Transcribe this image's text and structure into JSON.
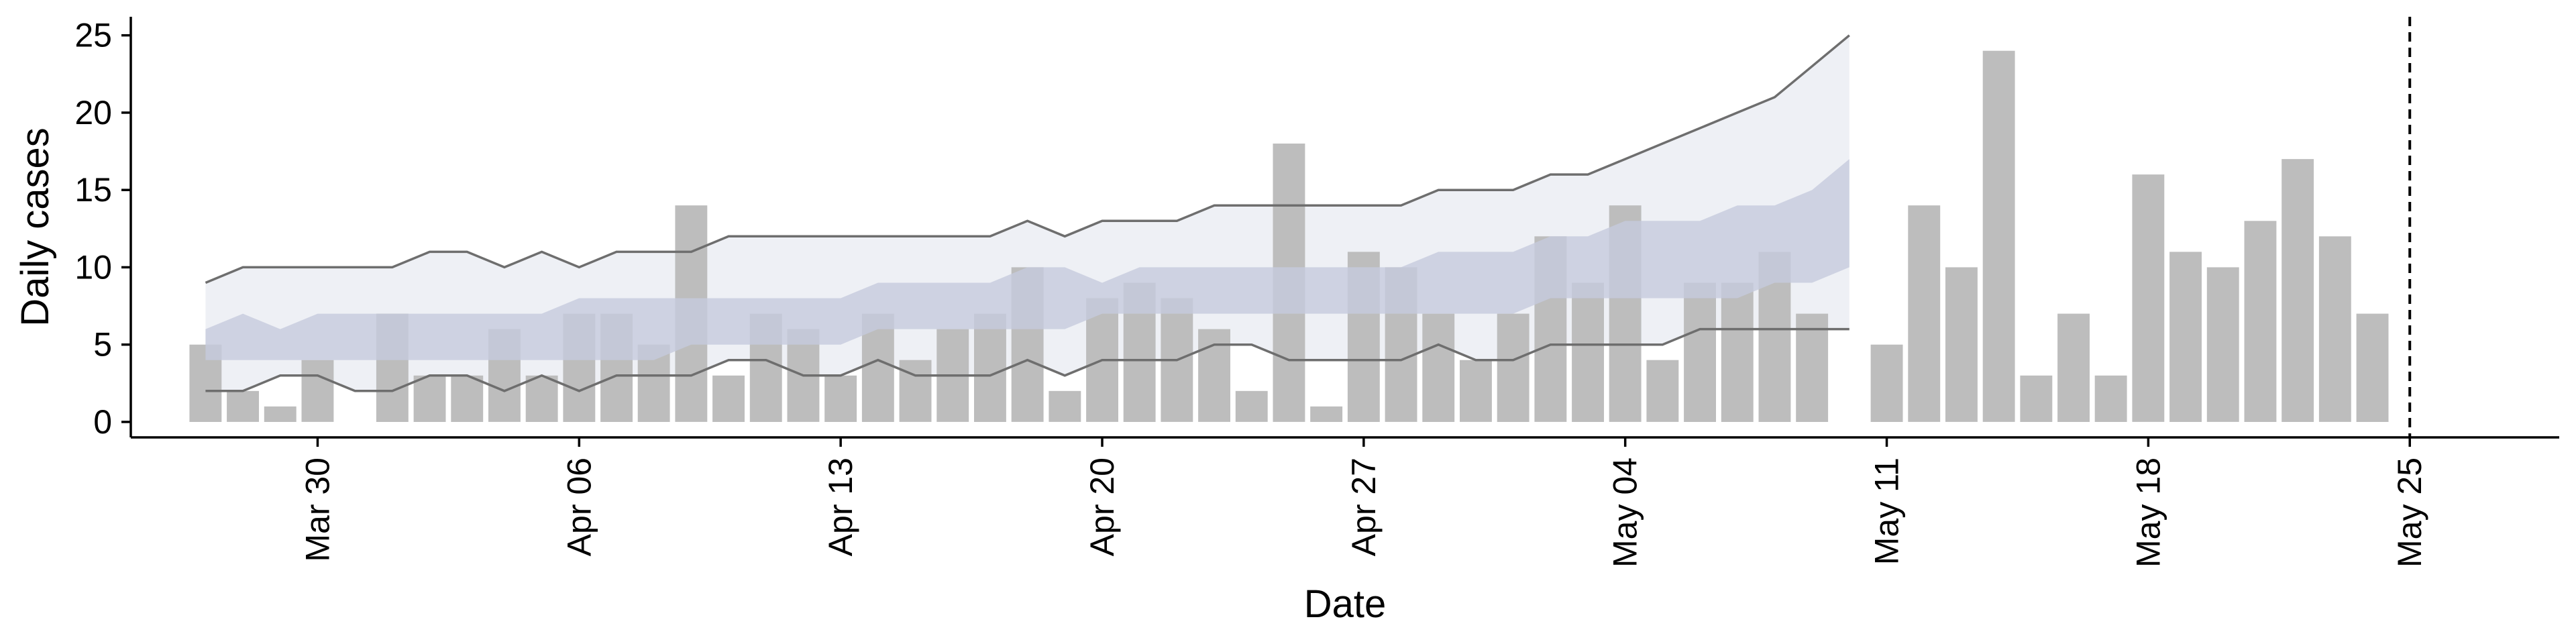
{
  "chart_data": {
    "type": "bar",
    "xlabel": "Date",
    "ylabel": "Daily cases",
    "x_start": "2020-03-27",
    "ylim": [
      -1,
      26.2
    ],
    "xlim": [
      "2020-03-25",
      "2020-05-29"
    ],
    "yticks": [
      0,
      5,
      10,
      15,
      20,
      25
    ],
    "xticks": [
      {
        "date": "2020-03-30",
        "label": "Mar 30"
      },
      {
        "date": "2020-04-06",
        "label": "Apr 06"
      },
      {
        "date": "2020-04-13",
        "label": "Apr 13"
      },
      {
        "date": "2020-04-20",
        "label": "Apr 20"
      },
      {
        "date": "2020-04-27",
        "label": "Apr 27"
      },
      {
        "date": "2020-05-04",
        "label": "May 04"
      },
      {
        "date": "2020-05-11",
        "label": "May 11"
      },
      {
        "date": "2020-05-18",
        "label": "May 18"
      },
      {
        "date": "2020-05-25",
        "label": "May 25"
      }
    ],
    "cases": [
      5,
      2,
      1,
      4,
      null,
      7,
      3,
      3,
      6,
      3,
      7,
      7,
      5,
      14,
      3,
      7,
      6,
      3,
      7,
      4,
      6,
      7,
      10,
      2,
      8,
      9,
      8,
      6,
      2,
      18,
      1,
      11,
      10,
      7,
      4,
      7,
      12,
      9,
      14,
      4,
      9,
      9,
      11,
      7,
      null,
      5,
      14,
      10,
      24,
      3,
      7,
      3,
      16,
      11,
      10,
      13,
      17,
      12,
      7
    ],
    "fit_end_index": 44,
    "upper_outer": [
      9,
      10,
      10,
      10,
      10,
      10,
      11,
      11,
      10,
      11,
      10,
      11,
      11,
      11,
      12,
      12,
      12,
      12,
      12,
      12,
      12,
      12,
      13,
      12,
      13,
      13,
      13,
      14,
      14,
      14,
      14,
      14,
      14,
      15,
      15,
      15,
      16,
      16,
      17,
      18,
      19,
      20,
      21,
      23,
      25
    ],
    "lower_outer": [
      2,
      2,
      3,
      3,
      2,
      2,
      3,
      3,
      2,
      3,
      2,
      3,
      3,
      3,
      4,
      4,
      3,
      3,
      4,
      3,
      3,
      3,
      4,
      3,
      4,
      4,
      4,
      5,
      5,
      4,
      4,
      4,
      4,
      5,
      4,
      4,
      5,
      5,
      5,
      5,
      6,
      6,
      6,
      6,
      6
    ],
    "upper_inner": [
      6,
      7,
      6,
      7,
      7,
      7,
      7,
      7,
      7,
      7,
      8,
      8,
      8,
      8,
      8,
      8,
      8,
      8,
      9,
      9,
      9,
      9,
      10,
      10,
      9,
      10,
      10,
      10,
      10,
      10,
      10,
      10,
      10,
      11,
      11,
      11,
      12,
      12,
      13,
      13,
      13,
      14,
      14,
      15,
      17
    ],
    "lower_inner": [
      4,
      4,
      4,
      4,
      4,
      4,
      4,
      4,
      4,
      4,
      4,
      4,
      4,
      5,
      5,
      5,
      5,
      5,
      6,
      6,
      6,
      6,
      6,
      6,
      7,
      7,
      7,
      7,
      7,
      7,
      7,
      7,
      7,
      7,
      7,
      7,
      8,
      8,
      8,
      8,
      8,
      8,
      9,
      9,
      10
    ],
    "vline_date": "2020-05-25",
    "colors": {
      "bar": "#bdbdbd",
      "band_outer": "#eef0f5",
      "band_inner": "#c5cbdd",
      "bound_line": "#6e6e6e",
      "axis": "#000000",
      "vline": "#000000"
    }
  }
}
